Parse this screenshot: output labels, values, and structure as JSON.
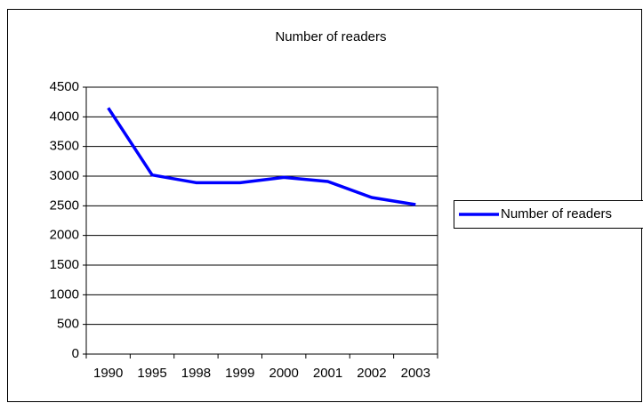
{
  "chart_data": {
    "type": "line",
    "title": "Number of readers",
    "categories": [
      "1990",
      "1995",
      "1998",
      "1999",
      "2000",
      "2001",
      "2002",
      "2003"
    ],
    "series": [
      {
        "name": "Number of readers",
        "color": "#0000ff",
        "values": [
          4150,
          3020,
          2890,
          2890,
          2980,
          2910,
          2640,
          2520
        ]
      }
    ],
    "ylim": [
      0,
      4500
    ],
    "yticks": [
      0,
      500,
      1000,
      1500,
      2000,
      2500,
      3000,
      3500,
      4000,
      4500
    ],
    "grid": true,
    "legend": "right"
  }
}
